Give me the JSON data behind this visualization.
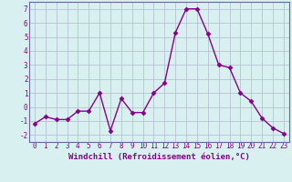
{
  "x": [
    0,
    1,
    2,
    3,
    4,
    5,
    6,
    7,
    8,
    9,
    10,
    11,
    12,
    13,
    14,
    15,
    16,
    17,
    18,
    19,
    20,
    21,
    22,
    23
  ],
  "y": [
    -1.2,
    -0.7,
    -0.9,
    -0.9,
    -0.3,
    -0.3,
    1.0,
    -1.7,
    0.6,
    -0.4,
    -0.4,
    1.0,
    1.7,
    5.3,
    7.0,
    7.0,
    5.2,
    3.0,
    2.8,
    1.0,
    0.4,
    -0.8,
    -1.5,
    -1.9
  ],
  "line_color": "#880088",
  "marker": "D",
  "markersize": 2.5,
  "linewidth": 1.0,
  "xlabel": "Windchill (Refroidissement éolien,°C)",
  "xlabel_color": "#880088",
  "xlabel_fontsize": 6.5,
  "xtick_labels": [
    "0",
    "1",
    "2",
    "3",
    "4",
    "5",
    "6",
    "7",
    "8",
    "9",
    "10",
    "11",
    "12",
    "13",
    "14",
    "15",
    "16",
    "17",
    "18",
    "19",
    "20",
    "21",
    "22",
    "23"
  ],
  "ylim": [
    -2.5,
    7.5
  ],
  "xlim": [
    -0.5,
    23.5
  ],
  "yticks": [
    -2,
    -1,
    0,
    1,
    2,
    3,
    4,
    5,
    6,
    7
  ],
  "background_color": "#d8f0f0",
  "grid_color": "#b0b8cc",
  "tick_fontsize": 5.5,
  "tick_color": "#880088"
}
